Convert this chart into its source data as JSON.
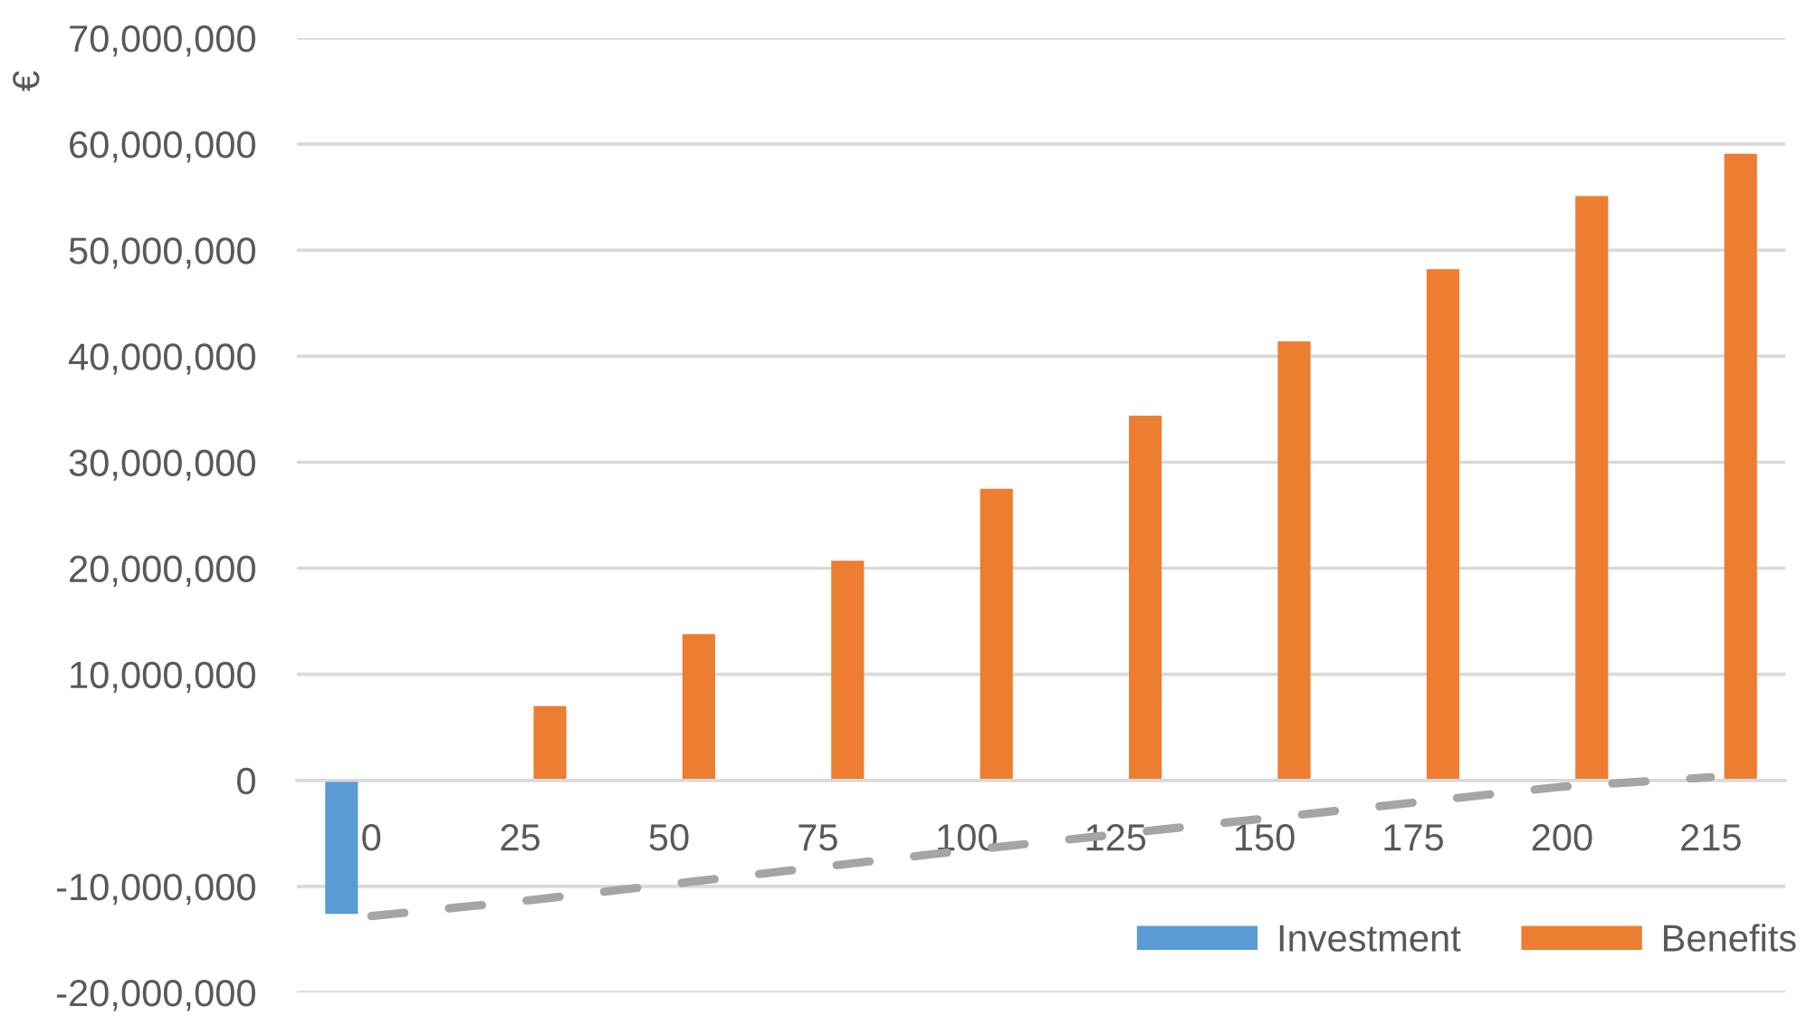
{
  "chart_data": {
    "type": "bar",
    "ylabel": "€",
    "categories": [
      "0",
      "25",
      "50",
      "75",
      "100",
      "125",
      "150",
      "175",
      "200",
      "215"
    ],
    "series": [
      {
        "name": "Investment",
        "color": "#5b9bd5",
        "values": [
          -12600000,
          null,
          null,
          null,
          null,
          null,
          null,
          null,
          null,
          null
        ]
      },
      {
        "name": "Benefits",
        "color": "#ed7d31",
        "values": [
          null,
          7000000,
          13800000,
          20700000,
          27500000,
          34400000,
          41400000,
          48200000,
          55100000,
          59100000
        ]
      },
      {
        "type": "line",
        "color": "#a5a5a5",
        "values": [
          -12800000,
          -11400000,
          -9800000,
          -8200000,
          -6600000,
          -5100000,
          -3600000,
          -2100000,
          -600000,
          300000
        ]
      }
    ],
    "ylim": [
      -20000000,
      70000000
    ],
    "yticks": [
      {
        "value": -20000000,
        "label": "-20,000,000"
      },
      {
        "value": -10000000,
        "label": "-10,000,000"
      },
      0,
      {
        "value": 10000000,
        "label": "10,000,000"
      },
      {
        "value": 20000000,
        "label": "20,000,000"
      },
      {
        "value": 30000000,
        "label": "30,000,000"
      },
      {
        "value": 40000000,
        "label": "40,000,000"
      },
      {
        "value": 50000000,
        "label": "50,000,000"
      },
      {
        "value": 60000000,
        "label": "60,000,000"
      },
      {
        "value": 70000000,
        "label": "70,000,000"
      }
    ],
    "grid": "y",
    "legend": "bottom right",
    "line_style": "dashed"
  }
}
